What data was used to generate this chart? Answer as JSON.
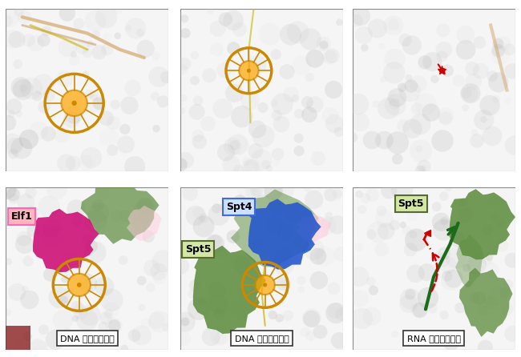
{
  "figure_width": 6.5,
  "figure_height": 4.46,
  "dpi": 100,
  "background_color": "#ffffff",
  "panel_bg": "#f0f0f0",
  "panels": [
    {
      "row": 0,
      "col": 0,
      "label": null,
      "sublabel": null
    },
    {
      "row": 0,
      "col": 1,
      "label": null,
      "sublabel": null
    },
    {
      "row": 0,
      "col": 2,
      "label": null,
      "sublabel": null
    },
    {
      "row": 1,
      "col": 0,
      "label": "Elf1",
      "label_color": "#ff69b4",
      "label_bg": "#ffb6c1",
      "label_border": "#ff69b4",
      "sublabel": "DNA 導入トンネル"
    },
    {
      "row": 1,
      "col": 1,
      "label1": "Spt4",
      "label1_color": "#4169e1",
      "label1_bg": "#add8e6",
      "label1_border": "#4169e1",
      "label2": "Spt5",
      "label2_color": "#556b2f",
      "label2_bg": "#d4e6a5",
      "label2_border": "#556b2f",
      "sublabel": "DNA 送出トンネル"
    },
    {
      "row": 1,
      "col": 2,
      "label": "Spt5",
      "label_color": "#556b2f",
      "label_bg": "#d4e6a5",
      "label_border": "#556b2f",
      "sublabel": "RNA 送出トンネル"
    }
  ],
  "wheel_color_outer": "#cc8800",
  "wheel_color_inner": "#ffa500",
  "magenta_blob": "#cc1177",
  "blue_blob": "#2255cc",
  "green_blob": "#336622",
  "light_green_blob": "#5a8a3a",
  "pink_blob": "#ffaacc",
  "dark_red_blob": "#8b0000",
  "grid_lines": true,
  "panel_border_color": "#888888",
  "sublabel_bg": "#ffffff",
  "sublabel_border": "#333333",
  "sublabel_fontsize": 8,
  "label_fontsize": 9,
  "arrow_color_red": "#cc0000",
  "arrow_green_color": "#1a6b1a"
}
